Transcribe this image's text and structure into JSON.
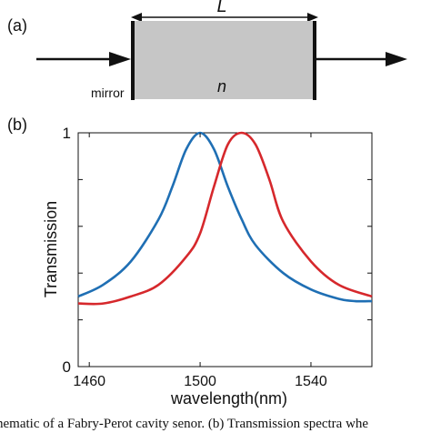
{
  "panel_a": {
    "label": "(a)",
    "length_label": "L",
    "index_label": "n",
    "mirror_label": "mirror",
    "colors": {
      "cavity_fill": "#c6c6c6",
      "mirror": "#111111",
      "arrow": "#111111"
    }
  },
  "panel_b": {
    "label": "(b)"
  },
  "chart_data": {
    "type": "line",
    "title": "",
    "xlabel": "wavelength(nm)",
    "ylabel": "Transmission",
    "xlim": [
      1456,
      1562
    ],
    "ylim": [
      0,
      1
    ],
    "x_ticks": [
      1460,
      1500,
      1540
    ],
    "y_ticks": [
      0,
      1
    ],
    "y_minor_ticks": [
      0.2,
      0.4,
      0.6,
      0.8
    ],
    "grid": false,
    "series": [
      {
        "color": "#1f6fb4",
        "x": [
          1456,
          1465,
          1475,
          1485,
          1490,
          1495,
          1500,
          1505,
          1510,
          1515,
          1520,
          1530,
          1540,
          1550,
          1556,
          1562
        ],
        "y": [
          0.3,
          0.35,
          0.45,
          0.63,
          0.77,
          0.93,
          1.0,
          0.93,
          0.77,
          0.63,
          0.52,
          0.4,
          0.33,
          0.29,
          0.28,
          0.28
        ]
      },
      {
        "color": "#d6282c",
        "x": [
          1456,
          1465,
          1475,
          1485,
          1495,
          1500,
          1505,
          1510,
          1515,
          1520,
          1525,
          1530,
          1540,
          1550,
          1562
        ],
        "y": [
          0.27,
          0.27,
          0.3,
          0.35,
          0.47,
          0.57,
          0.77,
          0.95,
          1.0,
          0.95,
          0.8,
          0.62,
          0.45,
          0.35,
          0.3
        ]
      }
    ]
  },
  "caption": {
    "text": "hematic of a Fabry-Perot cavity senor. (b) Transmission spectra whe"
  }
}
